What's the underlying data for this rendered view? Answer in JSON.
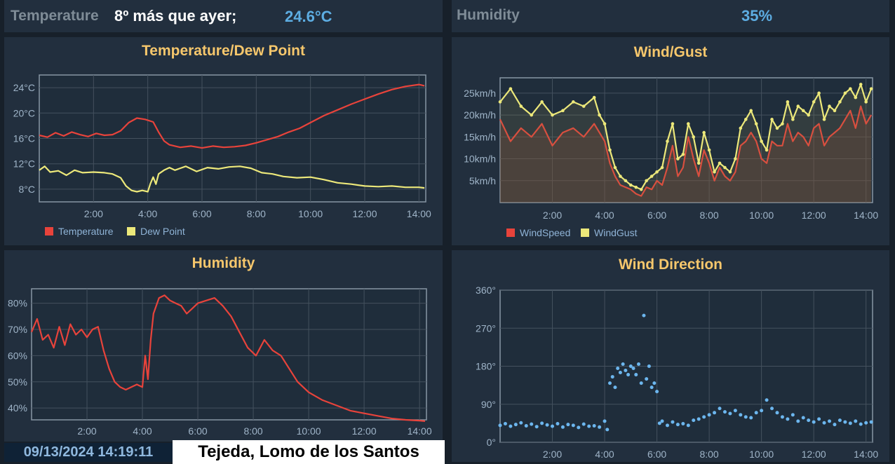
{
  "header": {
    "temperature_label": "Temperature",
    "temperature_note": "8º más que ayer;",
    "temperature_value": "24.6°C",
    "humidity_label": "Humidity",
    "humidity_value": "35%"
  },
  "footer": {
    "datetime": "09/13/2024 14:19:11",
    "location": "Tejeda, Lomo de los Santos"
  },
  "colors": {
    "red": "#e8433b",
    "yellow": "#ece87a",
    "blue": "#6cb6ee",
    "accent": "#5dade2",
    "title": "#f6c76c"
  },
  "chart_data": [
    {
      "type": "line",
      "title": "Temperature/Dew Point",
      "x_unit": "hours",
      "xlim": [
        0,
        14.25
      ],
      "ylim": [
        6,
        26
      ],
      "x_ticks": [
        2,
        4,
        6,
        8,
        10,
        12,
        14
      ],
      "x_tick_labels": [
        "2:00",
        "4:00",
        "6:00",
        "8:00",
        "10:00",
        "12:00",
        "14:00"
      ],
      "y_ticks": [
        8,
        12,
        16,
        20,
        24
      ],
      "y_tick_labels": [
        "8°C",
        "12°C",
        "16°C",
        "20°C",
        "24°C"
      ],
      "series": [
        {
          "name": "Temperature",
          "color": "#e8433b",
          "marker": false,
          "x": [
            0,
            0.3,
            0.6,
            0.9,
            1.2,
            1.5,
            1.8,
            2.1,
            2.4,
            2.7,
            3.0,
            3.3,
            3.6,
            3.9,
            4.2,
            4.4,
            4.6,
            4.8,
            5.2,
            5.6,
            6.0,
            6.4,
            6.8,
            7.2,
            7.6,
            8.0,
            8.4,
            8.8,
            9.2,
            9.6,
            10.0,
            10.5,
            11.0,
            11.5,
            12.0,
            12.5,
            13.0,
            13.5,
            14.0,
            14.2
          ],
          "y": [
            16.5,
            16.2,
            16.9,
            16.4,
            17.0,
            16.6,
            16.3,
            16.8,
            16.5,
            16.6,
            17.2,
            18.5,
            19.2,
            19.0,
            18.6,
            17.0,
            15.6,
            15.0,
            14.6,
            14.8,
            14.5,
            14.8,
            14.6,
            14.7,
            14.9,
            15.3,
            15.8,
            16.3,
            17.0,
            17.6,
            18.5,
            19.6,
            20.5,
            21.4,
            22.2,
            23.0,
            23.7,
            24.2,
            24.5,
            24.3
          ]
        },
        {
          "name": "Dew Point",
          "color": "#ece87a",
          "marker": false,
          "x": [
            0,
            0.2,
            0.4,
            0.7,
            1.0,
            1.3,
            1.6,
            2.0,
            2.4,
            2.7,
            3.0,
            3.2,
            3.4,
            3.6,
            3.8,
            4.0,
            4.1,
            4.2,
            4.3,
            4.4,
            4.6,
            4.8,
            5.0,
            5.4,
            5.8,
            6.2,
            6.6,
            7.0,
            7.4,
            7.8,
            8.2,
            8.6,
            9.0,
            9.5,
            10.0,
            10.5,
            11.0,
            11.5,
            12.0,
            12.5,
            13.0,
            13.5,
            14.0,
            14.2
          ],
          "y": [
            11.0,
            11.6,
            10.7,
            10.9,
            10.2,
            11.0,
            10.6,
            10.7,
            10.6,
            10.4,
            9.8,
            8.5,
            7.8,
            7.6,
            7.8,
            7.6,
            8.9,
            9.9,
            8.8,
            10.4,
            11.0,
            11.4,
            11.0,
            11.6,
            10.8,
            11.4,
            11.2,
            11.5,
            11.6,
            11.3,
            10.6,
            10.4,
            10.0,
            9.8,
            9.9,
            9.5,
            9.0,
            8.8,
            8.5,
            8.4,
            8.5,
            8.3,
            8.3,
            8.2
          ]
        }
      ],
      "legend": [
        "Temperature",
        "Dew Point"
      ]
    },
    {
      "type": "line",
      "title": "Wind/Gust",
      "x_unit": "hours",
      "xlim": [
        0,
        14.25
      ],
      "ylim": [
        0,
        28.5
      ],
      "x_ticks": [
        2,
        4,
        6,
        8,
        10,
        12,
        14
      ],
      "x_tick_labels": [
        "2:00",
        "4:00",
        "6:00",
        "8:00",
        "10:00",
        "12:00",
        "14:00"
      ],
      "y_ticks": [
        5,
        10,
        15,
        20,
        25
      ],
      "y_tick_labels": [
        "5km/h",
        "10km/h",
        "15km/h",
        "20km/h",
        "25km/h"
      ],
      "series": [
        {
          "name": "WindSpeed",
          "color": "#e8433b",
          "marker": false,
          "x": [
            0,
            0.4,
            0.8,
            1.2,
            1.6,
            2.0,
            2.4,
            2.8,
            3.2,
            3.6,
            3.8,
            4.0,
            4.2,
            4.4,
            4.6,
            4.8,
            5.0,
            5.2,
            5.4,
            5.6,
            5.8,
            6.0,
            6.2,
            6.4,
            6.6,
            6.8,
            7.0,
            7.2,
            7.4,
            7.6,
            7.8,
            8.0,
            8.2,
            8.4,
            8.6,
            8.8,
            9.0,
            9.2,
            9.4,
            9.6,
            9.8,
            10.0,
            10.2,
            10.4,
            10.6,
            10.8,
            11.0,
            11.2,
            11.4,
            11.6,
            11.8,
            12.0,
            12.2,
            12.4,
            12.6,
            12.8,
            13.0,
            13.2,
            13.4,
            13.6,
            13.8,
            14.0,
            14.2
          ],
          "y": [
            19,
            14,
            17,
            15,
            18,
            13,
            16,
            17,
            15,
            18,
            16,
            14,
            9,
            6,
            4,
            3.5,
            3,
            2,
            1.5,
            3.5,
            3,
            5,
            4,
            8,
            13,
            6,
            8,
            15,
            10,
            6,
            12,
            9,
            5,
            8,
            6,
            5,
            7,
            13,
            14,
            16,
            14,
            10,
            9,
            14,
            13,
            13,
            18,
            14,
            16,
            15,
            13,
            17,
            18,
            13,
            15,
            16,
            17,
            19,
            21,
            17,
            22,
            18,
            20
          ]
        },
        {
          "name": "WindGust",
          "color": "#ece87a",
          "marker": true,
          "x": [
            0,
            0.4,
            0.8,
            1.2,
            1.6,
            2.0,
            2.4,
            2.8,
            3.2,
            3.6,
            3.8,
            4.0,
            4.2,
            4.4,
            4.6,
            4.8,
            5.0,
            5.2,
            5.4,
            5.6,
            5.8,
            6.0,
            6.2,
            6.4,
            6.6,
            6.8,
            7.0,
            7.2,
            7.4,
            7.6,
            7.8,
            8.0,
            8.2,
            8.4,
            8.6,
            8.8,
            9.0,
            9.2,
            9.4,
            9.6,
            9.8,
            10.0,
            10.2,
            10.4,
            10.6,
            10.8,
            11.0,
            11.2,
            11.4,
            11.6,
            11.8,
            12.0,
            12.2,
            12.4,
            12.6,
            12.8,
            13.0,
            13.2,
            13.4,
            13.6,
            13.8,
            14.0,
            14.2
          ],
          "y": [
            23,
            26,
            22,
            20,
            23,
            20,
            21,
            23,
            22,
            24,
            20,
            18,
            12,
            8,
            6,
            5,
            4,
            3.5,
            3,
            5,
            6,
            7,
            8,
            14,
            18,
            10,
            11,
            18,
            15,
            9,
            16,
            12,
            7,
            9,
            8,
            7,
            10,
            17,
            19,
            21,
            18,
            14,
            12,
            19,
            17,
            18,
            23,
            19,
            22,
            21,
            20,
            23,
            25,
            19,
            22,
            21,
            23,
            25,
            26,
            24,
            27,
            23,
            26
          ]
        }
      ],
      "legend": [
        "WindSpeed",
        "WindGust"
      ]
    },
    {
      "type": "line",
      "title": "Humidity",
      "x_unit": "hours",
      "xlim": [
        0,
        14.25
      ],
      "ylim": [
        35.5,
        85.5
      ],
      "x_ticks": [
        2,
        4,
        6,
        8,
        10,
        12,
        14
      ],
      "x_tick_labels": [
        "2:00",
        "4:00",
        "6:00",
        "8:00",
        "10:00",
        "12:00",
        "14:00"
      ],
      "y_ticks": [
        40,
        50,
        60,
        70,
        80
      ],
      "y_tick_labels": [
        "40%",
        "50%",
        "60%",
        "70%",
        "80%"
      ],
      "series": [
        {
          "name": "Humidity",
          "color": "#e8433b",
          "marker": false,
          "x": [
            0,
            0.2,
            0.4,
            0.6,
            0.8,
            1.0,
            1.2,
            1.4,
            1.6,
            1.8,
            2.0,
            2.2,
            2.4,
            2.6,
            2.8,
            3.0,
            3.2,
            3.4,
            3.6,
            3.8,
            4.0,
            4.1,
            4.2,
            4.3,
            4.4,
            4.6,
            4.8,
            5.0,
            5.2,
            5.4,
            5.6,
            5.8,
            6.0,
            6.3,
            6.6,
            6.9,
            7.2,
            7.5,
            7.8,
            8.1,
            8.4,
            8.7,
            9.0,
            9.3,
            9.6,
            10.0,
            10.5,
            11.0,
            11.5,
            12.0,
            12.5,
            13.0,
            13.5,
            14.0,
            14.2
          ],
          "y": [
            69,
            74,
            66,
            68,
            63,
            71,
            64,
            72,
            68,
            70,
            67,
            70,
            71,
            62,
            55,
            50,
            48,
            47,
            48,
            49,
            48,
            60,
            51,
            66,
            76,
            82,
            83,
            81,
            80,
            79,
            76,
            78,
            80,
            81,
            82,
            79,
            75,
            69,
            63,
            60,
            66,
            62,
            60,
            55,
            50,
            46,
            43,
            41,
            39,
            38,
            37,
            36,
            35.5,
            35.2,
            35
          ]
        }
      ],
      "legend": []
    },
    {
      "type": "scatter",
      "title": "Wind Direction",
      "x_unit": "hours",
      "xlim": [
        0,
        14.25
      ],
      "ylim": [
        0,
        360
      ],
      "x_ticks": [
        2,
        4,
        6,
        8,
        10,
        12,
        14
      ],
      "x_tick_labels": [
        "2:00",
        "4:00",
        "6:00",
        "8:00",
        "10:00",
        "12:00",
        "14:00"
      ],
      "y_ticks": [
        0,
        90,
        180,
        270,
        360
      ],
      "y_tick_labels": [
        "0°",
        "90°",
        "180°",
        "270°",
        "360°"
      ],
      "series": [
        {
          "name": "Wind Direction",
          "color": "#6cb6ee",
          "marker": true,
          "x": [
            0,
            0.2,
            0.4,
            0.6,
            0.8,
            1.0,
            1.2,
            1.4,
            1.6,
            1.8,
            2.0,
            2.2,
            2.4,
            2.6,
            2.8,
            3.0,
            3.2,
            3.4,
            3.6,
            3.8,
            4.0,
            4.1,
            4.2,
            4.3,
            4.4,
            4.5,
            4.6,
            4.7,
            4.8,
            4.9,
            5.0,
            5.1,
            5.2,
            5.3,
            5.4,
            5.5,
            5.6,
            5.7,
            5.8,
            5.9,
            6.0,
            6.1,
            6.2,
            6.4,
            6.6,
            6.8,
            7.0,
            7.2,
            7.4,
            7.6,
            7.8,
            8.0,
            8.2,
            8.4,
            8.6,
            8.8,
            9.0,
            9.2,
            9.4,
            9.6,
            9.8,
            10.0,
            10.2,
            10.4,
            10.6,
            10.8,
            11.0,
            11.2,
            11.4,
            11.6,
            11.8,
            12.0,
            12.2,
            12.4,
            12.6,
            12.8,
            13.0,
            13.2,
            13.4,
            13.6,
            13.8,
            14.0,
            14.2
          ],
          "y": [
            40,
            44,
            38,
            42,
            46,
            39,
            43,
            37,
            45,
            41,
            38,
            44,
            36,
            42,
            40,
            35,
            43,
            38,
            39,
            36,
            50,
            30,
            140,
            155,
            130,
            175,
            165,
            185,
            170,
            160,
            180,
            175,
            160,
            185,
            140,
            300,
            150,
            180,
            130,
            140,
            120,
            45,
            50,
            40,
            48,
            42,
            44,
            40,
            52,
            55,
            60,
            65,
            70,
            80,
            72,
            68,
            75,
            65,
            60,
            58,
            70,
            75,
            100,
            80,
            70,
            60,
            55,
            65,
            50,
            58,
            52,
            48,
            55,
            46,
            50,
            42,
            52,
            48,
            45,
            50,
            43,
            46,
            48
          ]
        }
      ],
      "legend": []
    }
  ]
}
